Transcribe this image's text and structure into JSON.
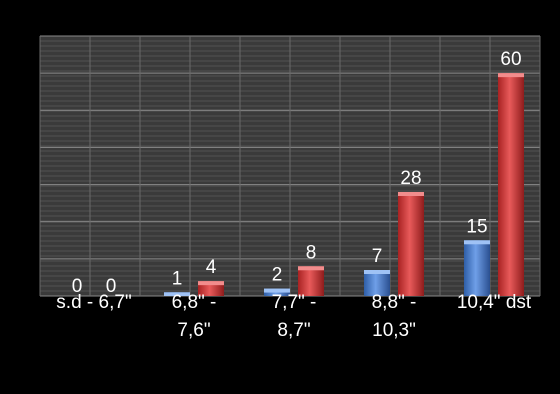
{
  "chart_data": {
    "type": "bar",
    "categories": [
      "s.d - 6,7\"",
      "6,8\" - 7,6\"",
      "7,7\" - 8,7\"",
      "8,8\" - 10,3\"",
      "10,4\" dst"
    ],
    "category_lines": [
      [
        "s.d - 6,7\""
      ],
      [
        "6,8\" -",
        "7,6\""
      ],
      [
        "7,7\" -",
        "8,7\""
      ],
      [
        "8,8\" -",
        "10,3\""
      ],
      [
        "10,4\" dst"
      ]
    ],
    "series": [
      {
        "values": [
          0,
          1,
          2,
          7,
          15
        ],
        "color": "#4a7fd0"
      },
      {
        "values": [
          0,
          4,
          8,
          28,
          60
        ],
        "color": "#d23a3a"
      }
    ],
    "data_labels": true,
    "ylim": [
      0,
      70
    ],
    "grid": true,
    "background": "#000000",
    "plot_background": "#3a3a3a"
  }
}
